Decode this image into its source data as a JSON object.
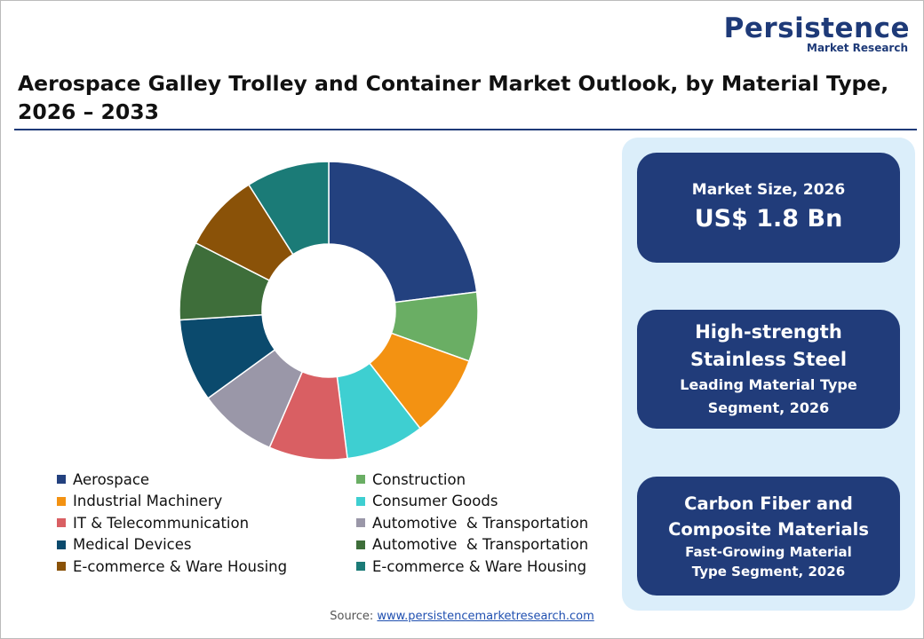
{
  "logo": {
    "name": "Persistence",
    "tagline": "Market Research"
  },
  "chart_data": {
    "type": "donut",
    "title": "Aerospace Galley Trolley and Container Market Outlook, by Material Type, 2026 – 2033",
    "categories": [
      "Aerospace",
      "Construction",
      "Industrial Machinery",
      "Consumer Goods",
      "IT & Telecommunication",
      "Automotive  & Transportation",
      "Medical Devices",
      "Automotive  & Transportation",
      "E-commerce & Ware Housing",
      "E-commerce & Ware Housing"
    ],
    "values": [
      23,
      7.5,
      9,
      8.5,
      8.5,
      8.5,
      9,
      8.5,
      8.5,
      9
    ],
    "colors": [
      "#23417f",
      "#6aae64",
      "#f39212",
      "#3ecfd1",
      "#d95f63",
      "#9a97a8",
      "#0b4a6d",
      "#3e6e3a",
      "#8a5208",
      "#1b7b77"
    ]
  },
  "cards": [
    {
      "label": "Market Size, 2026",
      "value": "US$ 1.8 Bn"
    },
    {
      "value": "High-strength Stainless Steel",
      "label": "Leading Material Type Segment, 2026"
    },
    {
      "value": "Carbon Fiber and Composite Materials",
      "label": "Fast-Growing Material Type Segment, 2026"
    }
  ],
  "source": {
    "label": "Source:",
    "link": "www.persistencemarketresearch.com"
  }
}
